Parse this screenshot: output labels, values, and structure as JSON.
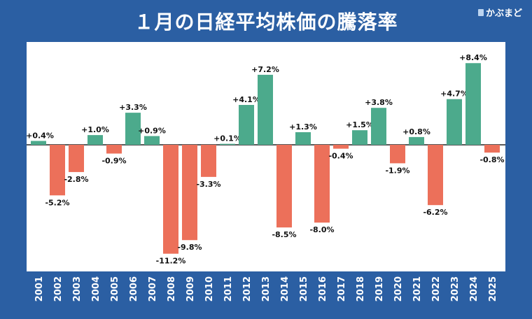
{
  "header": {
    "title": "１月の日経平均株価の騰落率",
    "brand": "かぶまど"
  },
  "colors": {
    "positive": "#4caa8c",
    "negative": "#ec705a",
    "background": "#2b5fa3",
    "panel": "#ffffff"
  },
  "chart_data": {
    "type": "bar",
    "title": "１月の日経平均株価の騰落率",
    "categories": [
      "2001",
      "2002",
      "2003",
      "2004",
      "2005",
      "2006",
      "2007",
      "2008",
      "2009",
      "2010",
      "2011",
      "2012",
      "2013",
      "2014",
      "2015",
      "2016",
      "2017",
      "2018",
      "2019",
      "2020",
      "2021",
      "2022",
      "2023",
      "2024",
      "2025"
    ],
    "values": [
      0.4,
      -5.2,
      -2.8,
      1.0,
      -0.9,
      3.3,
      0.9,
      -11.2,
      -9.8,
      -3.3,
      0.1,
      4.1,
      7.2,
      -8.5,
      1.3,
      -8.0,
      -0.4,
      1.5,
      3.8,
      -1.9,
      0.8,
      -6.2,
      4.7,
      8.4,
      -0.8
    ],
    "labels": [
      "+0.4%",
      "-5.2%",
      "-2.8%",
      "+1.0%",
      "-0.9%",
      "+3.3%",
      "+0.9%",
      "-11.2%",
      "-9.8%",
      "-3.3%",
      "+0.1%",
      "+4.1%",
      "+7.2%",
      "-8.5%",
      "+1.3%",
      "-8.0%",
      "-0.4%",
      "+1.5%",
      "+3.8%",
      "-1.9%",
      "+0.8%",
      "-6.2%",
      "+4.7%",
      "+8.4%",
      "-0.8%"
    ],
    "xlabel": "",
    "ylabel": "",
    "ylim": [
      -11.2,
      8.4
    ],
    "grid": false,
    "legend": "none"
  }
}
